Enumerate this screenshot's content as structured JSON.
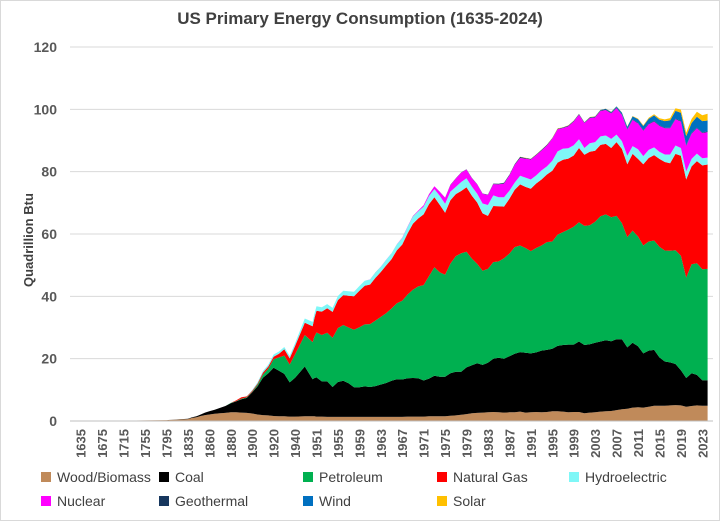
{
  "chart_data": {
    "type": "area",
    "stacked": true,
    "title": "US Primary Energy Consumption (1635-2024)",
    "xlabel": "",
    "ylabel": "Quadrillion Btu",
    "ylim": [
      0,
      120
    ],
    "yticks": [
      0,
      20,
      40,
      60,
      80,
      100,
      120
    ],
    "xticks": [
      "1635",
      "1675",
      "1715",
      "1755",
      "1795",
      "1835",
      "1860",
      "1880",
      "1900",
      "1920",
      "1940",
      "1951",
      "1955",
      "1959",
      "1963",
      "1967",
      "1971",
      "1975",
      "1979",
      "1983",
      "1987",
      "1991",
      "1995",
      "1999",
      "2003",
      "2007",
      "2011",
      "2015",
      "2019",
      "2023"
    ],
    "grid": "horizontal",
    "legend_position": "bottom",
    "x": [
      "1635",
      "1675",
      "1715",
      "1755",
      "1795",
      "1835",
      "1840",
      "1845",
      "1850",
      "1855",
      "1860",
      "1865",
      "1870",
      "1875",
      "1880",
      "1885",
      "1890",
      "1895",
      "1900",
      "1905",
      "1910",
      "1915",
      "1920",
      "1925",
      "1930",
      "1935",
      "1940",
      "1945",
      "1949",
      "1950",
      "1951",
      "1952",
      "1953",
      "1954",
      "1955",
      "1956",
      "1957",
      "1958",
      "1959",
      "1960",
      "1961",
      "1962",
      "1963",
      "1964",
      "1965",
      "1966",
      "1967",
      "1968",
      "1969",
      "1970",
      "1971",
      "1972",
      "1973",
      "1974",
      "1975",
      "1976",
      "1977",
      "1978",
      "1979",
      "1980",
      "1981",
      "1982",
      "1983",
      "1984",
      "1985",
      "1986",
      "1987",
      "1988",
      "1989",
      "1990",
      "1991",
      "1992",
      "1993",
      "1994",
      "1995",
      "1996",
      "1997",
      "1998",
      "1999",
      "2000",
      "2001",
      "2002",
      "2003",
      "2004",
      "2005",
      "2006",
      "2007",
      "2008",
      "2009",
      "2010",
      "2011",
      "2012",
      "2013",
      "2014",
      "2015",
      "2016",
      "2017",
      "2018",
      "2019",
      "2020",
      "2021",
      "2022",
      "2023",
      "2024"
    ],
    "series": [
      {
        "name": "Wood/Biomass",
        "color": "#c08a5a",
        "values": [
          0.02,
          0.05,
          0.1,
          0.2,
          0.3,
          0.6,
          1.0,
          1.2,
          1.6,
          1.9,
          2.1,
          2.3,
          2.5,
          2.6,
          2.8,
          2.8,
          2.7,
          2.6,
          2.4,
          2.1,
          1.9,
          1.8,
          1.6,
          1.5,
          1.5,
          1.4,
          1.4,
          1.5,
          1.5,
          1.5,
          1.4,
          1.4,
          1.3,
          1.3,
          1.3,
          1.3,
          1.3,
          1.3,
          1.3,
          1.3,
          1.3,
          1.3,
          1.3,
          1.3,
          1.3,
          1.3,
          1.3,
          1.4,
          1.4,
          1.4,
          1.4,
          1.5,
          1.5,
          1.5,
          1.5,
          1.7,
          1.8,
          2.0,
          2.2,
          2.5,
          2.6,
          2.7,
          2.8,
          2.9,
          2.8,
          2.7,
          2.8,
          2.8,
          3.0,
          2.7,
          2.8,
          2.9,
          2.8,
          2.9,
          3.1,
          3.1,
          3.0,
          2.8,
          2.9,
          2.9,
          2.5,
          2.7,
          2.8,
          3.0,
          3.1,
          3.2,
          3.5,
          3.8,
          3.9,
          4.3,
          4.4,
          4.3,
          4.6,
          4.9,
          4.9,
          4.9,
          5.0,
          5.1,
          5.0,
          4.6,
          4.8,
          5.0,
          4.9,
          4.9
        ]
      },
      {
        "name": "Coal",
        "color": "#000000",
        "values": [
          0,
          0,
          0,
          0,
          0,
          0.1,
          0.2,
          0.3,
          0.5,
          0.8,
          1.0,
          1.3,
          1.7,
          2.2,
          2.9,
          3.5,
          4.3,
          4.8,
          6.8,
          9.0,
          12.0,
          13.5,
          15.5,
          14.6,
          13.6,
          11.0,
          12.5,
          16.0,
          11.9,
          12.3,
          12.6,
          11.3,
          11.4,
          9.6,
          11.2,
          11.6,
          10.8,
          9.5,
          9.5,
          9.8,
          9.6,
          9.9,
          10.4,
          10.9,
          11.6,
          12.1,
          12.0,
          12.3,
          12.4,
          12.3,
          11.6,
          12.1,
          13.0,
          12.7,
          12.7,
          13.6,
          14.0,
          13.8,
          15.0,
          15.4,
          15.9,
          15.3,
          15.9,
          17.1,
          17.5,
          17.3,
          18.0,
          18.8,
          19.1,
          19.2,
          18.9,
          19.1,
          19.8,
          19.9,
          20.1,
          21.0,
          21.4,
          21.7,
          21.6,
          22.6,
          21.9,
          21.9,
          22.3,
          22.5,
          22.8,
          22.4,
          22.7,
          22.4,
          19.7,
          20.8,
          19.6,
          17.4,
          18.0,
          17.9,
          15.5,
          14.2,
          13.8,
          13.2,
          11.3,
          9.2,
          10.5,
          9.8,
          8.2,
          8.2
        ]
      },
      {
        "name": "Petroleum",
        "color": "#00b050",
        "values": [
          0,
          0,
          0,
          0,
          0,
          0,
          0,
          0,
          0,
          0,
          0,
          0,
          0,
          0,
          0.1,
          0.1,
          0.2,
          0.2,
          0.2,
          0.5,
          1.0,
          1.5,
          2.7,
          4.3,
          5.9,
          5.7,
          7.5,
          10.1,
          11.9,
          13.3,
          14.4,
          14.9,
          15.6,
          15.8,
          17.3,
          17.9,
          17.9,
          18.5,
          19.3,
          19.9,
          20.2,
          21.0,
          21.7,
          22.4,
          23.2,
          24.4,
          25.3,
          26.9,
          28.3,
          29.5,
          30.6,
          32.9,
          34.8,
          33.5,
          32.7,
          35.2,
          37.1,
          38.0,
          37.1,
          34.2,
          31.9,
          30.2,
          30.1,
          31.0,
          30.9,
          32.2,
          32.9,
          34.2,
          34.2,
          33.6,
          32.8,
          33.5,
          33.7,
          34.6,
          34.4,
          35.7,
          36.2,
          36.9,
          37.8,
          38.3,
          38.2,
          38.2,
          38.8,
          40.2,
          40.4,
          39.8,
          39.6,
          37.3,
          35.4,
          36.0,
          35.2,
          34.6,
          35.0,
          35.1,
          35.5,
          35.6,
          35.8,
          36.5,
          36.7,
          32.2,
          35.0,
          35.8,
          35.6,
          35.7
        ]
      },
      {
        "name": "Natural Gas",
        "color": "#ff0000",
        "values": [
          0,
          0,
          0,
          0,
          0,
          0,
          0,
          0,
          0,
          0,
          0,
          0,
          0,
          0,
          0,
          0.2,
          0.4,
          0.3,
          0.3,
          0.4,
          0.6,
          0.7,
          0.8,
          1.2,
          2.0,
          2.0,
          2.7,
          3.9,
          5.1,
          6.0,
          7.0,
          7.5,
          7.9,
          8.3,
          9.0,
          9.6,
          10.2,
          10.7,
          11.7,
          12.4,
          12.7,
          13.7,
          14.4,
          15.3,
          15.8,
          17.0,
          18.0,
          19.6,
          21.2,
          21.8,
          22.7,
          23.1,
          22.5,
          21.7,
          19.9,
          20.3,
          19.9,
          20.0,
          20.7,
          20.2,
          19.7,
          18.4,
          17.0,
          18.0,
          17.7,
          16.6,
          17.6,
          18.4,
          19.6,
          19.6,
          20.0,
          20.7,
          21.2,
          21.7,
          22.7,
          23.1,
          23.2,
          22.8,
          22.9,
          23.8,
          22.8,
          23.6,
          22.8,
          22.9,
          22.6,
          22.2,
          23.7,
          23.8,
          23.4,
          24.6,
          24.9,
          26.1,
          26.8,
          27.4,
          28.2,
          28.4,
          28.1,
          30.9,
          32.1,
          31.5,
          31.4,
          32.8,
          33.3,
          33.5
        ]
      },
      {
        "name": "Hydroelectric",
        "color": "#7ff7f7",
        "values": [
          0,
          0,
          0,
          0,
          0,
          0,
          0,
          0,
          0,
          0,
          0,
          0,
          0,
          0,
          0,
          0,
          0.02,
          0.05,
          0.25,
          0.4,
          0.5,
          0.6,
          0.74,
          0.7,
          0.75,
          0.8,
          0.9,
          1.4,
          1.4,
          1.4,
          1.4,
          1.4,
          1.3,
          1.3,
          1.3,
          1.4,
          1.4,
          1.5,
          1.5,
          1.6,
          1.6,
          1.7,
          1.7,
          1.8,
          1.9,
          1.9,
          2.1,
          2.1,
          2.3,
          2.3,
          2.5,
          2.6,
          2.6,
          2.9,
          2.9,
          2.8,
          2.3,
          2.9,
          2.9,
          2.9,
          2.8,
          3.2,
          3.5,
          3.4,
          2.9,
          3.0,
          2.6,
          2.3,
          2.8,
          3.0,
          3.0,
          2.6,
          2.9,
          2.6,
          3.2,
          3.6,
          3.6,
          3.3,
          3.3,
          2.8,
          2.2,
          2.7,
          2.8,
          2.7,
          2.7,
          2.9,
          2.4,
          2.5,
          2.7,
          2.5,
          3.1,
          2.6,
          2.6,
          2.5,
          2.3,
          2.4,
          2.8,
          2.7,
          2.5,
          2.6,
          2.4,
          2.4,
          2.3,
          2.2
        ]
      },
      {
        "name": "Nuclear",
        "color": "#ff00ff",
        "values": [
          0,
          0,
          0,
          0,
          0,
          0,
          0,
          0,
          0,
          0,
          0,
          0,
          0,
          0,
          0,
          0,
          0,
          0,
          0,
          0,
          0,
          0,
          0,
          0,
          0,
          0,
          0,
          0,
          0,
          0,
          0,
          0,
          0,
          0,
          0,
          0,
          0,
          0,
          0,
          0,
          0.02,
          0.03,
          0.04,
          0.04,
          0.04,
          0.06,
          0.09,
          0.13,
          0.15,
          0.24,
          0.4,
          0.58,
          0.91,
          1.27,
          1.9,
          2.1,
          2.7,
          3.0,
          2.8,
          2.7,
          3.0,
          3.1,
          3.2,
          3.6,
          4.1,
          4.4,
          4.9,
          5.7,
          5.7,
          6.1,
          6.4,
          6.5,
          6.4,
          6.7,
          7.1,
          7.1,
          6.6,
          7.1,
          7.6,
          7.9,
          8.0,
          8.1,
          7.9,
          8.2,
          8.2,
          8.2,
          8.5,
          8.4,
          8.4,
          8.4,
          8.3,
          8.1,
          8.2,
          8.3,
          8.3,
          8.4,
          8.4,
          8.4,
          8.5,
          8.2,
          8.1,
          8.1,
          8.1,
          8.2
        ]
      },
      {
        "name": "Geothermal",
        "color": "#17375e",
        "values": [
          0,
          0,
          0,
          0,
          0,
          0,
          0,
          0,
          0,
          0,
          0,
          0,
          0,
          0,
          0,
          0,
          0,
          0,
          0,
          0,
          0,
          0,
          0,
          0,
          0,
          0,
          0,
          0,
          0,
          0,
          0,
          0,
          0,
          0,
          0,
          0,
          0,
          0,
          0,
          0.01,
          0.01,
          0.01,
          0.01,
          0.01,
          0.01,
          0.01,
          0.01,
          0.01,
          0.01,
          0.01,
          0.01,
          0.03,
          0.04,
          0.05,
          0.07,
          0.08,
          0.08,
          0.06,
          0.08,
          0.11,
          0.12,
          0.11,
          0.13,
          0.16,
          0.2,
          0.22,
          0.23,
          0.22,
          0.32,
          0.17,
          0.17,
          0.18,
          0.19,
          0.18,
          0.15,
          0.17,
          0.17,
          0.18,
          0.18,
          0.16,
          0.16,
          0.17,
          0.17,
          0.18,
          0.18,
          0.18,
          0.19,
          0.19,
          0.2,
          0.21,
          0.21,
          0.21,
          0.21,
          0.21,
          0.21,
          0.21,
          0.21,
          0.21,
          0.21,
          0.21,
          0.21,
          0.21,
          0.21,
          0.21
        ]
      },
      {
        "name": "Wind",
        "color": "#0070c0",
        "values": [
          0,
          0,
          0,
          0,
          0,
          0,
          0,
          0,
          0,
          0,
          0,
          0,
          0,
          0,
          0,
          0,
          0,
          0,
          0,
          0,
          0,
          0,
          0,
          0,
          0,
          0,
          0,
          0,
          0,
          0,
          0,
          0,
          0,
          0,
          0,
          0,
          0,
          0,
          0,
          0,
          0,
          0,
          0,
          0,
          0,
          0,
          0,
          0,
          0,
          0,
          0,
          0,
          0,
          0,
          0,
          0,
          0,
          0,
          0,
          0,
          0,
          0,
          0,
          0,
          0,
          0,
          0,
          0,
          0.02,
          0.03,
          0.03,
          0.03,
          0.03,
          0.04,
          0.03,
          0.03,
          0.03,
          0.03,
          0.05,
          0.06,
          0.07,
          0.1,
          0.12,
          0.14,
          0.18,
          0.26,
          0.34,
          0.55,
          0.72,
          0.92,
          1.17,
          1.34,
          1.6,
          1.73,
          1.78,
          2.1,
          2.34,
          2.48,
          2.6,
          2.9,
          3.2,
          3.5,
          3.6,
          3.5
        ]
      },
      {
        "name": "Solar",
        "color": "#ffc000",
        "values": [
          0,
          0,
          0,
          0,
          0,
          0,
          0,
          0,
          0,
          0,
          0,
          0,
          0,
          0,
          0,
          0,
          0,
          0,
          0,
          0,
          0,
          0,
          0,
          0,
          0,
          0,
          0,
          0,
          0,
          0,
          0,
          0,
          0,
          0,
          0,
          0,
          0,
          0,
          0,
          0,
          0,
          0,
          0,
          0,
          0,
          0,
          0,
          0,
          0,
          0,
          0,
          0,
          0,
          0,
          0,
          0,
          0,
          0,
          0,
          0,
          0,
          0,
          0,
          0.01,
          0.01,
          0.01,
          0.01,
          0.01,
          0.06,
          0.06,
          0.06,
          0.06,
          0.07,
          0.07,
          0.07,
          0.07,
          0.07,
          0.07,
          0.07,
          0.07,
          0.06,
          0.06,
          0.06,
          0.06,
          0.06,
          0.07,
          0.08,
          0.09,
          0.1,
          0.13,
          0.17,
          0.23,
          0.31,
          0.39,
          0.47,
          0.57,
          0.75,
          0.84,
          0.99,
          1.11,
          1.31,
          1.6,
          1.87,
          2.2
        ]
      }
    ]
  }
}
